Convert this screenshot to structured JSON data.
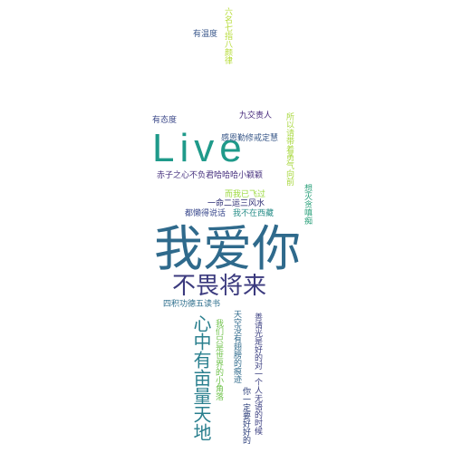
{
  "word_cloud": {
    "words": [
      {
        "text": "我爱你",
        "color": "#2f6a8c"
      },
      {
        "text": "Live",
        "color": "#1f9a8a"
      },
      {
        "text": "不畏将来",
        "color": "#3b3a7e"
      },
      {
        "text": "心中有亩量天地",
        "color": "#2a7f8e"
      },
      {
        "text": "有温度",
        "color": "#3e5b8e"
      },
      {
        "text": "六名七指八颜律",
        "color": "#b7dc3a"
      },
      {
        "text": "有态度",
        "color": "#3d4a8a"
      },
      {
        "text": "九交责人",
        "color": "#45277a"
      },
      {
        "text": "所以请带着勇气向前",
        "color": "#a9d83f"
      },
      {
        "text": "感恩勤修戒定慧",
        "color": "#3b5a8a"
      },
      {
        "text": "赤子之心不负君哈哈哈小颖颖",
        "color": "#46307e"
      },
      {
        "text": "而我已飞过",
        "color": "#9ad93a"
      },
      {
        "text": "一命二运三风水",
        "color": "#2a2a72"
      },
      {
        "text": "都懒得说话",
        "color": "#3b4a8e"
      },
      {
        "text": "我不在西藏",
        "color": "#2b8f8a"
      },
      {
        "text": "想灭贪嗔痴",
        "color": "#2aa07a"
      },
      {
        "text": "四积功德五读书",
        "color": "#2d6e8c"
      },
      {
        "text": "我们只是世界的小角落",
        "color": "#6fc24a"
      },
      {
        "text": "天空没有翅膀的痕迹",
        "color": "#2f6a8c"
      },
      {
        "text": "你一定要好好的",
        "color": "#2c3e7a"
      },
      {
        "text": "善请光是好的对一个人无语的时候",
        "color": "#3b3f80"
      }
    ]
  }
}
